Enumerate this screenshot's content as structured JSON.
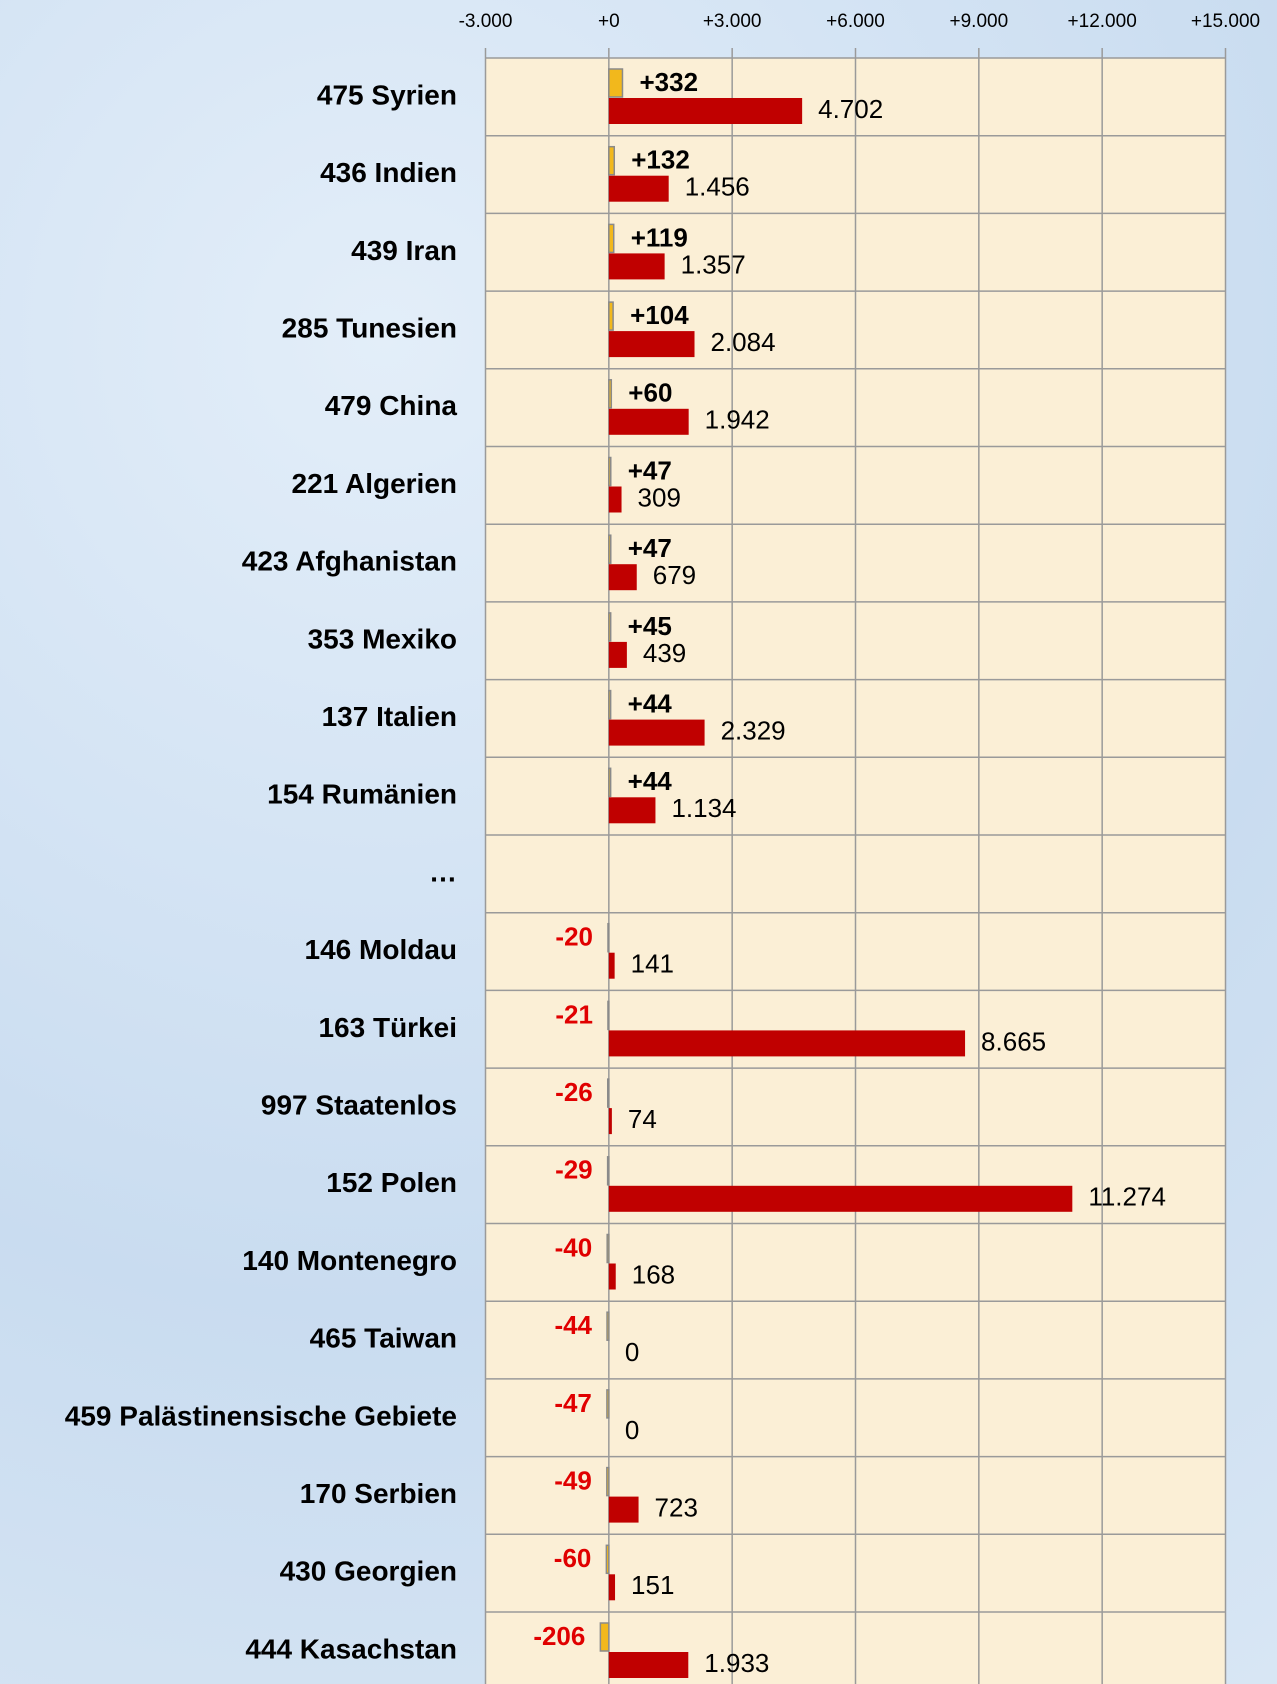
{
  "chart_data": {
    "type": "bar",
    "orientation": "horizontal",
    "categories": [
      "475 Syrien",
      "436 Indien",
      "439 Iran",
      "285 Tunesien",
      "479 China",
      "221 Algerien",
      "423 Afghanistan",
      "353 Mexiko",
      "137 Italien",
      "154 Rumänien",
      "…",
      "146 Moldau",
      "163 Türkei",
      "997 Staatenlos",
      "152 Polen",
      "140 Montenegro",
      "465 Taiwan",
      "459 Palästinensische Gebiete",
      "170 Serbien",
      "430 Georgien",
      "444 Kasachstan"
    ],
    "series": [
      {
        "color": "#f2b81c",
        "values": [
          332,
          132,
          119,
          104,
          60,
          47,
          47,
          45,
          44,
          44,
          null,
          -20,
          -21,
          -26,
          -29,
          -40,
          -44,
          -47,
          -49,
          -60,
          -206
        ],
        "value_labels": [
          "+332",
          "+132",
          "+119",
          "+104",
          "+60",
          "+47",
          "+47",
          "+45",
          "+44",
          "+44",
          null,
          "-20",
          "-21",
          "-26",
          "-29",
          "-40",
          "-44",
          "-47",
          "-49",
          "-60",
          "-206"
        ]
      },
      {
        "color": "#c00000",
        "values": [
          4702,
          1456,
          1357,
          2084,
          1942,
          309,
          679,
          439,
          2329,
          1134,
          null,
          141,
          8665,
          74,
          11274,
          168,
          0,
          0,
          723,
          151,
          1933
        ],
        "value_labels": [
          "4.702",
          "1.456",
          "1.357",
          "2.084",
          "1.942",
          "309",
          "679",
          "439",
          "2.329",
          "1.134",
          null,
          "141",
          "8.665",
          "74",
          "11.274",
          "168",
          "0",
          "0",
          "723",
          "151",
          "1.933"
        ]
      }
    ],
    "xlim": [
      -3000,
      15000
    ],
    "xticks": [
      {
        "value": -3000,
        "label": "-3.000"
      },
      {
        "value": 0,
        "label": "+0"
      },
      {
        "value": 3000,
        "label": "+3.000"
      },
      {
        "value": 6000,
        "label": "+6.000"
      },
      {
        "value": 9000,
        "label": "+9.000"
      },
      {
        "value": 12000,
        "label": "+12.000"
      },
      {
        "value": 15000,
        "label": "+15.000"
      }
    ],
    "grid": true
  }
}
